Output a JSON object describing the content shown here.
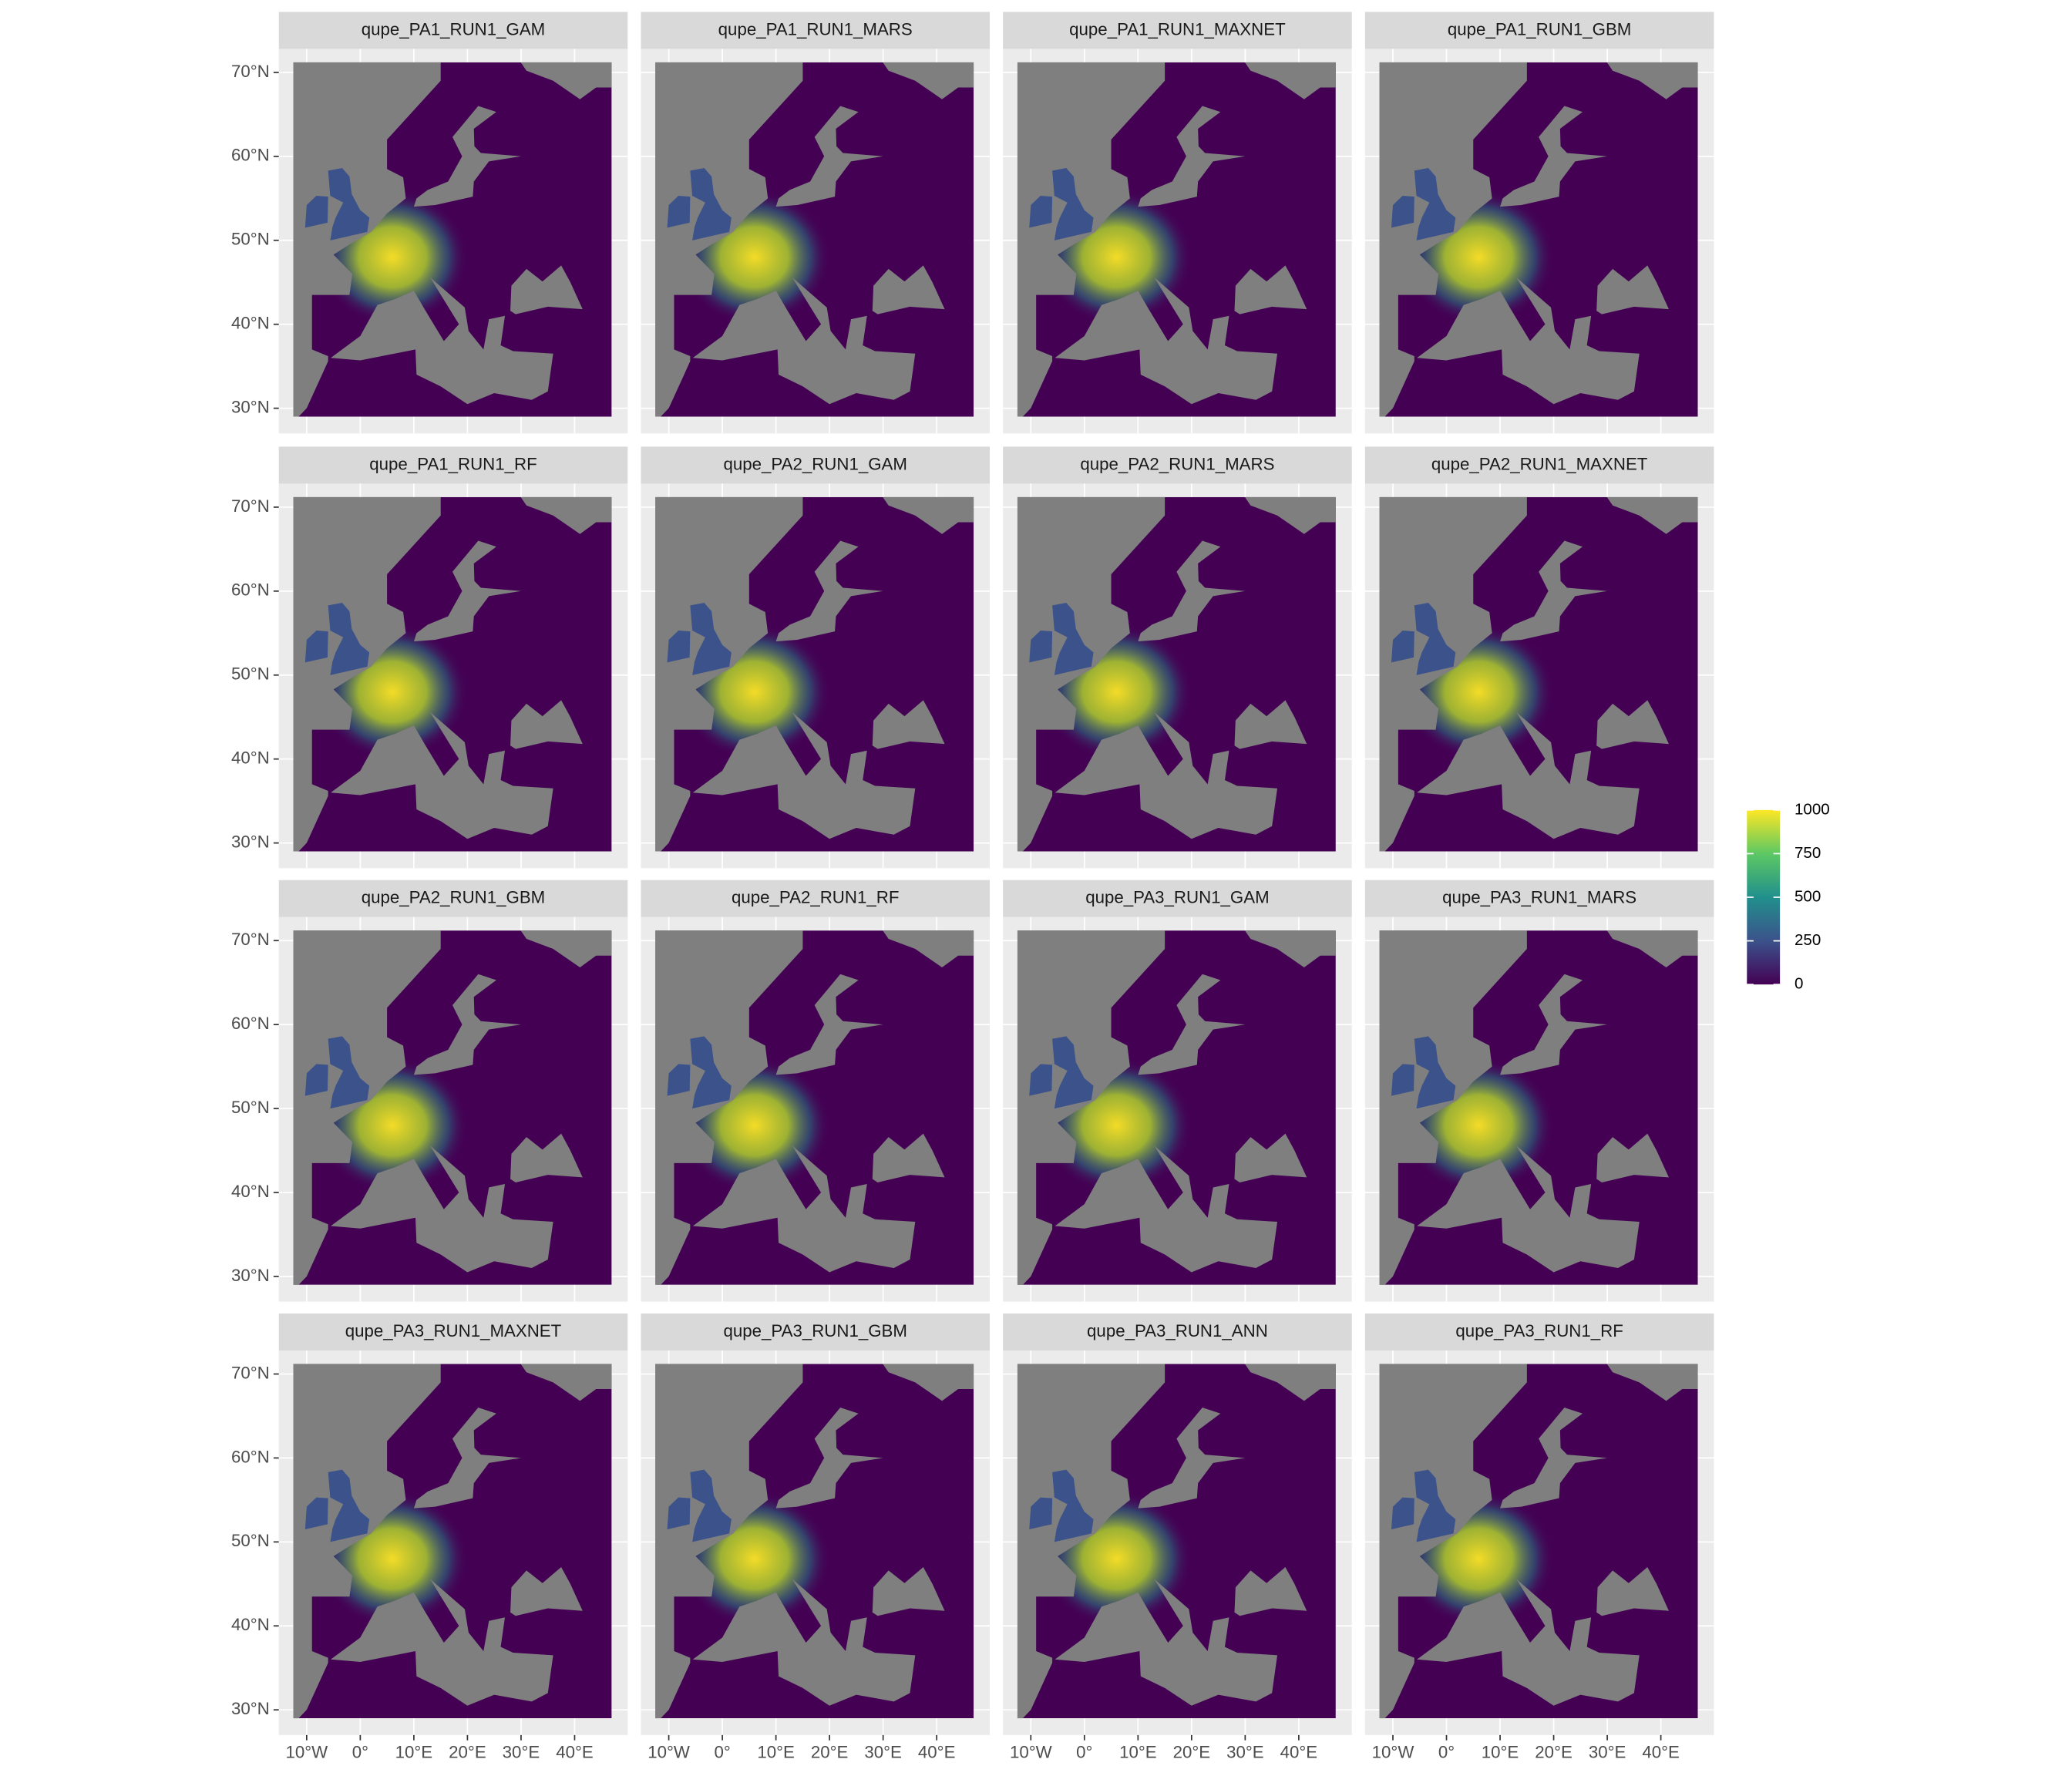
{
  "chart_data": {
    "type": "raster-facets",
    "facets": [
      "qupe_PA1_RUN1_GAM",
      "qupe_PA1_RUN1_MARS",
      "qupe_PA1_RUN1_MAXNET",
      "qupe_PA1_RUN1_GBM",
      "qupe_PA1_RUN1_RF",
      "qupe_PA2_RUN1_GAM",
      "qupe_PA2_RUN1_MARS",
      "qupe_PA2_RUN1_MAXNET",
      "qupe_PA2_RUN1_GBM",
      "qupe_PA2_RUN1_RF",
      "qupe_PA3_RUN1_GAM",
      "qupe_PA3_RUN1_MARS",
      "qupe_PA3_RUN1_MAXNET",
      "qupe_PA3_RUN1_GBM",
      "qupe_PA3_RUN1_ANN",
      "qupe_PA3_RUN1_RF"
    ],
    "xlim": [
      -15.2,
      49.9
    ],
    "ylim": [
      27,
      72.8
    ],
    "xticks": [
      {
        "value": -10,
        "label": "10°W"
      },
      {
        "value": 0,
        "label": "0°"
      },
      {
        "value": 10,
        "label": "10°E"
      },
      {
        "value": 20,
        "label": "20°E"
      },
      {
        "value": 30,
        "label": "30°E"
      },
      {
        "value": 40,
        "label": "40°E"
      }
    ],
    "yticks": [
      {
        "value": 30,
        "label": "30°N"
      },
      {
        "value": 40,
        "label": "40°N"
      },
      {
        "value": 50,
        "label": "50°N"
      },
      {
        "value": 60,
        "label": "60°N"
      },
      {
        "value": 70,
        "label": "70°N"
      }
    ],
    "grid": true,
    "legend": {
      "limits": [
        0,
        1000
      ],
      "ticks": [
        0,
        250,
        500,
        750,
        1000
      ],
      "colors": [
        "#440154",
        "#3b528b",
        "#21908c",
        "#5dc863",
        "#fde725"
      ]
    }
  }
}
